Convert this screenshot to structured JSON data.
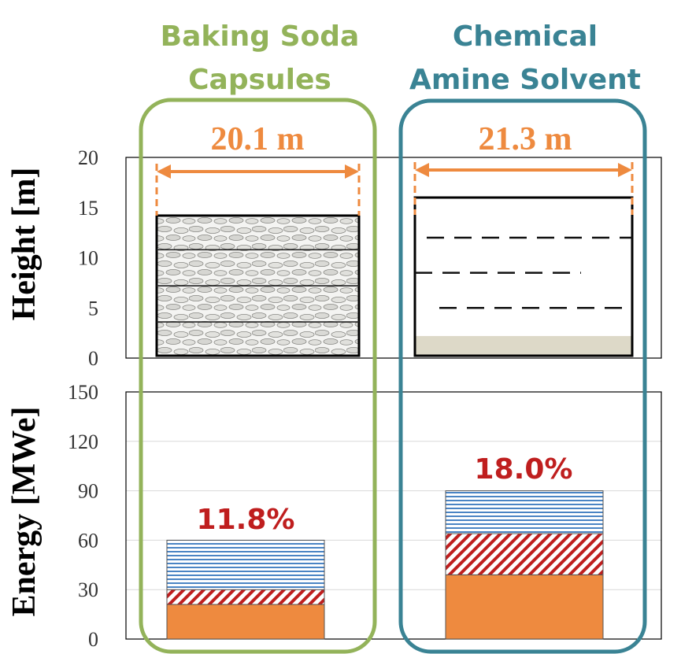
{
  "colors": {
    "green": "#93b35a",
    "teal": "#3a8394",
    "orange": "#ee8a3f",
    "red": "#bf1e1e",
    "blue_stripe": "#4a84c4",
    "liquid": "#ddd9c8"
  },
  "columns": [
    {
      "title_line1": "Baking Soda",
      "title_line2": "Capsules",
      "width_label": "20.1 m"
    },
    {
      "title_line1": "Chemical",
      "title_line2": "Amine Solvent",
      "width_label": "21.3 m"
    }
  ],
  "chart_data": [
    {
      "type": "diagram",
      "ylabel": "Height [m]",
      "ylim": [
        0,
        20
      ],
      "yticks": [
        "0",
        "5",
        "10",
        "15",
        "20"
      ],
      "columns": [
        {
          "width_m": 20.1,
          "height_m": 14.2,
          "fill": "capsule packing",
          "section_dividers_m": [
            3.6,
            7.2,
            10.8
          ]
        },
        {
          "width_m": 21.3,
          "height_m": 16.0,
          "fill": "solvent",
          "liquid_level_m": 2.2,
          "dashed_levels_m": [
            5.0,
            8.5,
            12.0
          ]
        }
      ]
    },
    {
      "type": "bar",
      "stacked": true,
      "ylabel": "Energy [MWe]",
      "ylim": [
        0,
        150
      ],
      "yticks": [
        "0",
        "30",
        "60",
        "90",
        "120",
        "150"
      ],
      "categories": [
        "Baking Soda Capsules",
        "Chemical Amine Solvent"
      ],
      "series": [
        {
          "pattern": "solid-orange",
          "values": [
            21,
            39
          ]
        },
        {
          "pattern": "red-diagonal-hatch",
          "values": [
            9,
            25
          ]
        },
        {
          "pattern": "blue-horizontal-stripes",
          "values": [
            30,
            26
          ]
        }
      ],
      "totals": [
        60,
        90
      ],
      "percent_labels": [
        "11.8%",
        "18.0%"
      ]
    }
  ]
}
